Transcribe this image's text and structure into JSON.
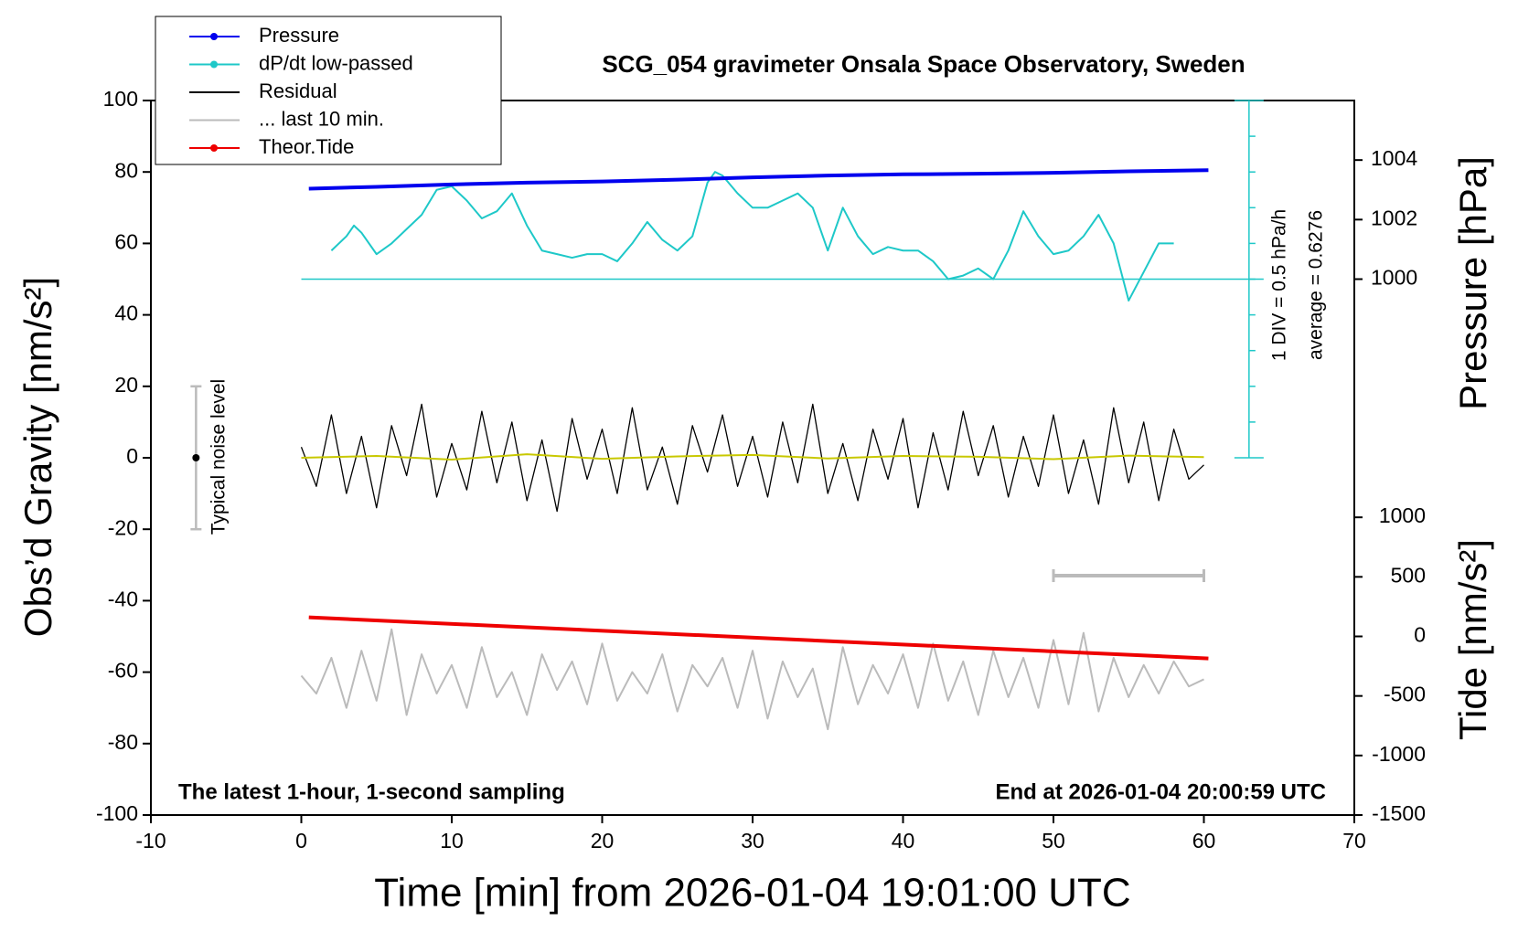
{
  "chart_data": {
    "type": "line",
    "title": "SCG_054 gravimeter Onsala Space Observatory, Sweden",
    "xlabel": "Time [min] from 2026-01-04 19:01:00 UTC",
    "ylabel": "Obs’d Gravity [nm/s²]",
    "y2label": "Pressure [hPa]",
    "y3label": "Tide [nm/s²]",
    "note_left": "The latest 1-hour, 1-second sampling",
    "note_right": "End at 2026-01-04 20:00:59 UTC",
    "noise_text": "Typical noise level",
    "dpdt_scale_text": "1 DIV = 0.5 hPa/h",
    "dpdt_average_text": "average = 0.6276",
    "xlim": [
      -10,
      70
    ],
    "xticks": [
      -10,
      0,
      10,
      20,
      30,
      40,
      50,
      60,
      70
    ],
    "ylim": [
      -100,
      100
    ],
    "yticks": [
      -100,
      -80,
      -60,
      -40,
      -20,
      0,
      20,
      40,
      60,
      80,
      100
    ],
    "y2lim": [
      982,
      1006
    ],
    "y2ticks": [
      1000,
      1002,
      1004
    ],
    "y3lim": [
      -1500,
      4500
    ],
    "y3ticks": [
      -1500,
      -1000,
      -500,
      0,
      500,
      1000
    ],
    "dpdt_axis_x": 63,
    "dpdt_ticks": [
      0,
      10,
      20,
      30,
      40,
      50,
      60,
      70,
      80,
      90,
      100
    ],
    "dpdt_baseline": 50,
    "noise_level": {
      "x": -7,
      "center": 0,
      "error": 20,
      "color": "#bbbbbb"
    },
    "last10_bar": {
      "x": [
        50,
        60
      ],
      "y": -33,
      "color": "#bbbbbb"
    },
    "series": [
      {
        "name": "Pressure",
        "color": "#0000ee",
        "axis": "y2",
        "marker": true,
        "x": [
          0.5,
          5,
          10,
          15,
          20,
          25,
          30,
          35,
          40,
          45,
          50,
          55,
          60.3
        ],
        "values": [
          1003.04,
          1003.1,
          1003.18,
          1003.24,
          1003.28,
          1003.34,
          1003.42,
          1003.48,
          1003.52,
          1003.54,
          1003.57,
          1003.62,
          1003.66
        ]
      },
      {
        "name": "dP/dt low-passed",
        "color": "#1ec8c8",
        "axis": "y",
        "marker": true,
        "x": [
          2,
          3,
          3.5,
          4,
          5,
          6,
          7,
          8,
          9,
          10,
          11,
          12,
          13,
          14,
          15,
          16,
          17,
          18,
          19,
          20,
          21,
          22,
          23,
          24,
          25,
          26,
          27,
          27.5,
          28,
          29,
          30,
          31,
          32,
          33,
          34,
          35,
          36,
          37,
          38,
          39,
          40,
          41,
          42,
          43,
          44,
          45,
          46,
          47,
          48,
          49,
          50,
          51,
          52,
          53,
          54,
          55,
          56,
          57,
          58
        ],
        "values": [
          58,
          62,
          65,
          63,
          57,
          60,
          64,
          68,
          75,
          76,
          72,
          67,
          69,
          74,
          65,
          58,
          57,
          56,
          57,
          57,
          55,
          60,
          66,
          61,
          58,
          62,
          77,
          80,
          79,
          74,
          70,
          70,
          72,
          74,
          70,
          58,
          70,
          62,
          57,
          59,
          58,
          58,
          55,
          50,
          51,
          53,
          50,
          58,
          69,
          62,
          57,
          58,
          62,
          68,
          60,
          44,
          52,
          60,
          60
        ]
      },
      {
        "name": "Residual",
        "color": "#000000",
        "axis": "y",
        "marker": false,
        "x": [
          0,
          1,
          2,
          3,
          4,
          5,
          6,
          7,
          8,
          9,
          10,
          11,
          12,
          13,
          14,
          15,
          16,
          17,
          18,
          19,
          20,
          21,
          22,
          23,
          24,
          25,
          26,
          27,
          28,
          29,
          30,
          31,
          32,
          33,
          34,
          35,
          36,
          37,
          38,
          39,
          40,
          41,
          42,
          43,
          44,
          45,
          46,
          47,
          48,
          49,
          50,
          51,
          52,
          53,
          54,
          55,
          56,
          57,
          58,
          59,
          60
        ],
        "values": [
          3,
          -8,
          12,
          -10,
          6,
          -14,
          9,
          -5,
          15,
          -11,
          4,
          -9,
          13,
          -7,
          10,
          -12,
          5,
          -15,
          11,
          -6,
          8,
          -10,
          14,
          -9,
          3,
          -13,
          9,
          -4,
          12,
          -8,
          6,
          -11,
          10,
          -7,
          15,
          -10,
          4,
          -12,
          8,
          -6,
          11,
          -14,
          7,
          -9,
          13,
          -5,
          9,
          -11,
          6,
          -8,
          12,
          -10,
          5,
          -13,
          14,
          -7,
          10,
          -12,
          8,
          -6,
          -2
        ]
      },
      {
        "name": "... last 10 min.",
        "color": "#bbbbbb",
        "axis": "y",
        "marker": false,
        "x": [
          0,
          1,
          2,
          3,
          4,
          5,
          6,
          7,
          8,
          9,
          10,
          11,
          12,
          13,
          14,
          15,
          16,
          17,
          18,
          19,
          20,
          21,
          22,
          23,
          24,
          25,
          26,
          27,
          28,
          29,
          30,
          31,
          32,
          33,
          34,
          35,
          36,
          37,
          38,
          39,
          40,
          41,
          42,
          43,
          44,
          45,
          46,
          47,
          48,
          49,
          50,
          51,
          52,
          53,
          54,
          55,
          56,
          57,
          58,
          59,
          60
        ],
        "values": [
          -61,
          -66,
          -56,
          -70,
          -54,
          -68,
          -48,
          -72,
          -55,
          -66,
          -58,
          -70,
          -53,
          -67,
          -60,
          -72,
          -55,
          -65,
          -57,
          -69,
          -52,
          -68,
          -60,
          -66,
          -55,
          -71,
          -58,
          -64,
          -56,
          -70,
          -54,
          -73,
          -57,
          -67,
          -59,
          -76,
          -53,
          -69,
          -58,
          -66,
          -55,
          -70,
          -52,
          -68,
          -57,
          -72,
          -54,
          -67,
          -56,
          -70,
          -51,
          -69,
          -49,
          -71,
          -56,
          -67,
          -58,
          -66,
          -57,
          -64,
          -62
        ]
      },
      {
        "name": "Theor.Tide",
        "color": "#ee0000",
        "axis": "y3",
        "marker": true,
        "x": [
          0.5,
          60.3
        ],
        "values": [
          160,
          -185
        ]
      }
    ],
    "smoothed": {
      "color": "#c8c800",
      "axis": "y",
      "x": [
        0,
        5,
        10,
        15,
        20,
        25,
        30,
        35,
        40,
        45,
        50,
        55,
        60
      ],
      "values": [
        0,
        0.5,
        -0.5,
        1,
        -0.3,
        0.4,
        0.8,
        -0.2,
        0.5,
        0.3,
        -0.4,
        0.6,
        0.2
      ]
    }
  }
}
